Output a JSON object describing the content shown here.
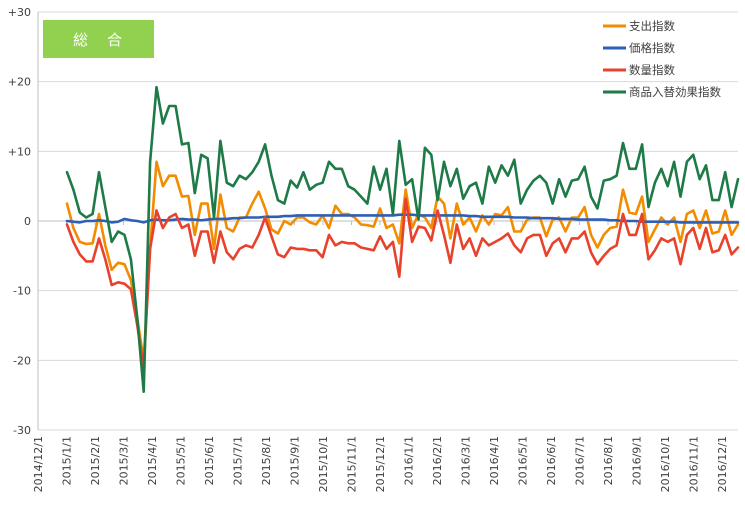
{
  "chart_data": {
    "type": "line",
    "title": "総　合",
    "badge_color": "#92d050",
    "ylim": [
      -30,
      30
    ],
    "y_ticks": [
      {
        "value": 30,
        "label": "+30"
      },
      {
        "value": 20,
        "label": "+20"
      },
      {
        "value": 10,
        "label": "+10"
      },
      {
        "value": 0,
        "label": "0"
      },
      {
        "value": -10,
        "label": "-10"
      },
      {
        "value": -20,
        "label": "-20"
      },
      {
        "value": -30,
        "label": "-30"
      }
    ],
    "x_ticks": [
      "2014/12/1",
      "2015/1/1",
      "2015/2/1",
      "2015/3/1",
      "2015/4/1",
      "2015/5/1",
      "2015/6/1",
      "2015/7/1",
      "2015/8/1",
      "2015/9/1",
      "2015/10/1",
      "2015/11/1",
      "2015/12/1",
      "2016/1/1",
      "2016/2/1",
      "2016/3/1",
      "2016/4/1",
      "2016/5/1",
      "2016/6/1",
      "2016/7/1",
      "2016/8/1",
      "2016/9/1",
      "2016/10/1",
      "2016/11/1",
      "2016/12/1"
    ],
    "legend_position": "top-right",
    "series": [
      {
        "name": "支出指数",
        "color": "#f28c00",
        "values": [
          2.5,
          -1,
          -3,
          -3.3,
          -3.2,
          1,
          -3.5,
          -7,
          -6,
          -6.2,
          -8.5,
          -14,
          -20,
          -4,
          8.5,
          5,
          6.5,
          6.5,
          3.5,
          3.6,
          -2,
          2.5,
          2.5,
          -4,
          3.8,
          -1,
          -1.5,
          0.5,
          0.5,
          2.5,
          4.2,
          1.8,
          -1.2,
          -1.8,
          0,
          -0.5,
          0.5,
          0.5,
          -0.2,
          -0.5,
          0.8,
          -1,
          2.2,
          1,
          1,
          0.5,
          -0.5,
          -0.6,
          -0.8,
          1.8,
          -1,
          -0.5,
          -3.2,
          4.5,
          -1,
          1,
          0.5,
          -1,
          3.5,
          2.5,
          -2.5,
          2.5,
          -0.5,
          0.5,
          -1.5,
          0.8,
          -0.5,
          1,
          0.8,
          2,
          -1.5,
          -1.5,
          0.2,
          0.5,
          0.5,
          -2.2,
          0.2,
          0.5,
          -1.5,
          0.5,
          0.5,
          2,
          -2,
          -3.8,
          -2,
          -1,
          -0.8,
          4.5,
          1.2,
          1,
          3.5,
          -3,
          -1.2,
          0.5,
          -0.5,
          0.5,
          -3,
          1,
          1.5,
          -1,
          1.5,
          -1.8,
          -1.5,
          1.5,
          -2,
          -0.5
        ]
      },
      {
        "name": "価格指数",
        "color": "#2e5fb6",
        "values": [
          0,
          -0.1,
          -0.2,
          0,
          0,
          0.1,
          0,
          -0.2,
          -0.1,
          0.3,
          0.1,
          0,
          -0.2,
          0.1,
          0.2,
          0.1,
          0.1,
          0.2,
          0.3,
          0.2,
          0.2,
          0.1,
          0.2,
          0.3,
          0.3,
          0.3,
          0.4,
          0.4,
          0.5,
          0.5,
          0.5,
          0.6,
          0.6,
          0.6,
          0.7,
          0.7,
          0.8,
          0.8,
          0.8,
          0.8,
          0.8,
          0.8,
          0.8,
          0.8,
          0.8,
          0.8,
          0.8,
          0.8,
          0.8,
          0.8,
          0.8,
          0.8,
          0.9,
          0.9,
          0.9,
          0.8,
          0.8,
          0.8,
          0.8,
          0.8,
          0.8,
          0.8,
          0.8,
          0.7,
          0.7,
          0.6,
          0.6,
          0.6,
          0.6,
          0.6,
          0.5,
          0.5,
          0.5,
          0.4,
          0.4,
          0.4,
          0.4,
          0.3,
          0.3,
          0.3,
          0.2,
          0.2,
          0.2,
          0.2,
          0.2,
          0.1,
          0.1,
          0,
          0,
          0,
          -0.1,
          -0.1,
          -0.1,
          -0.1,
          -0.1,
          -0.1,
          -0.2,
          -0.2,
          -0.2,
          -0.2,
          -0.2,
          -0.2,
          -0.2,
          -0.2,
          -0.2,
          -0.2
        ]
      },
      {
        "name": "数量指数",
        "color": "#e8412c",
        "values": [
          -0.5,
          -3,
          -4.8,
          -5.8,
          -5.8,
          -2.5,
          -5.5,
          -9.2,
          -8.8,
          -9,
          -9.8,
          -15,
          -21,
          -4,
          1.5,
          -1,
          0.5,
          1,
          -1,
          -0.5,
          -5,
          -1.5,
          -1.5,
          -6,
          -1.5,
          -4.5,
          -5.5,
          -4,
          -3.5,
          -3.8,
          -2,
          0.5,
          -2.2,
          -4.8,
          -5.2,
          -3.8,
          -4,
          -4,
          -4.2,
          -4.2,
          -5.2,
          -2,
          -3.5,
          -3,
          -3.2,
          -3.2,
          -3.8,
          -4,
          -4.2,
          -2.2,
          -4,
          -3,
          -8,
          3.2,
          -3,
          -0.8,
          -1,
          -2.8,
          1.5,
          -2,
          -6,
          -0.5,
          -4,
          -2.5,
          -5,
          -2.5,
          -3.5,
          -3,
          -2.5,
          -1.8,
          -3.5,
          -4.5,
          -2.5,
          -2,
          -2,
          -5,
          -3.2,
          -2.5,
          -4.5,
          -2.5,
          -2.5,
          -1.5,
          -4.5,
          -6.2,
          -5,
          -4,
          -3.5,
          1,
          -2,
          -2,
          1,
          -5.5,
          -4.2,
          -2.5,
          -3,
          -2.5,
          -6.2,
          -2,
          -1,
          -4,
          -1,
          -4.5,
          -4.2,
          -2,
          -4.8,
          -3.8
        ]
      },
      {
        "name": "商品入替効果指数",
        "color": "#1e7a46",
        "values": [
          7,
          4.5,
          1.2,
          0.5,
          1,
          7,
          2,
          -3,
          -1.5,
          -2,
          -5.5,
          -14,
          -24.5,
          8.5,
          19.2,
          14,
          16.5,
          16.5,
          11,
          11.2,
          4,
          9.5,
          9,
          0.5,
          11.5,
          5.5,
          5,
          6.5,
          6,
          7,
          8.5,
          11,
          6.5,
          3,
          2.5,
          5.8,
          4.8,
          7,
          4.5,
          5.2,
          5.5,
          8.5,
          7.5,
          7.5,
          5,
          4.5,
          3.5,
          2.5,
          7.8,
          4.5,
          7.5,
          1,
          11.5,
          5.2,
          6,
          0.2,
          10.5,
          9.5,
          3,
          8.5,
          5,
          7.5,
          3.2,
          5,
          5.5,
          2.5,
          7.8,
          5.5,
          8,
          6.5,
          8.8,
          2.5,
          4.5,
          5.8,
          6.5,
          5.5,
          2.5,
          6,
          3.5,
          5.8,
          6,
          7.8,
          3.5,
          1.8,
          5.8,
          6,
          6.5,
          11.2,
          7.5,
          7.5,
          11,
          2,
          5.5,
          7.5,
          5,
          8.5,
          3.5,
          8.5,
          9.5,
          6,
          8,
          3,
          3,
          7,
          2,
          6
        ]
      }
    ]
  }
}
